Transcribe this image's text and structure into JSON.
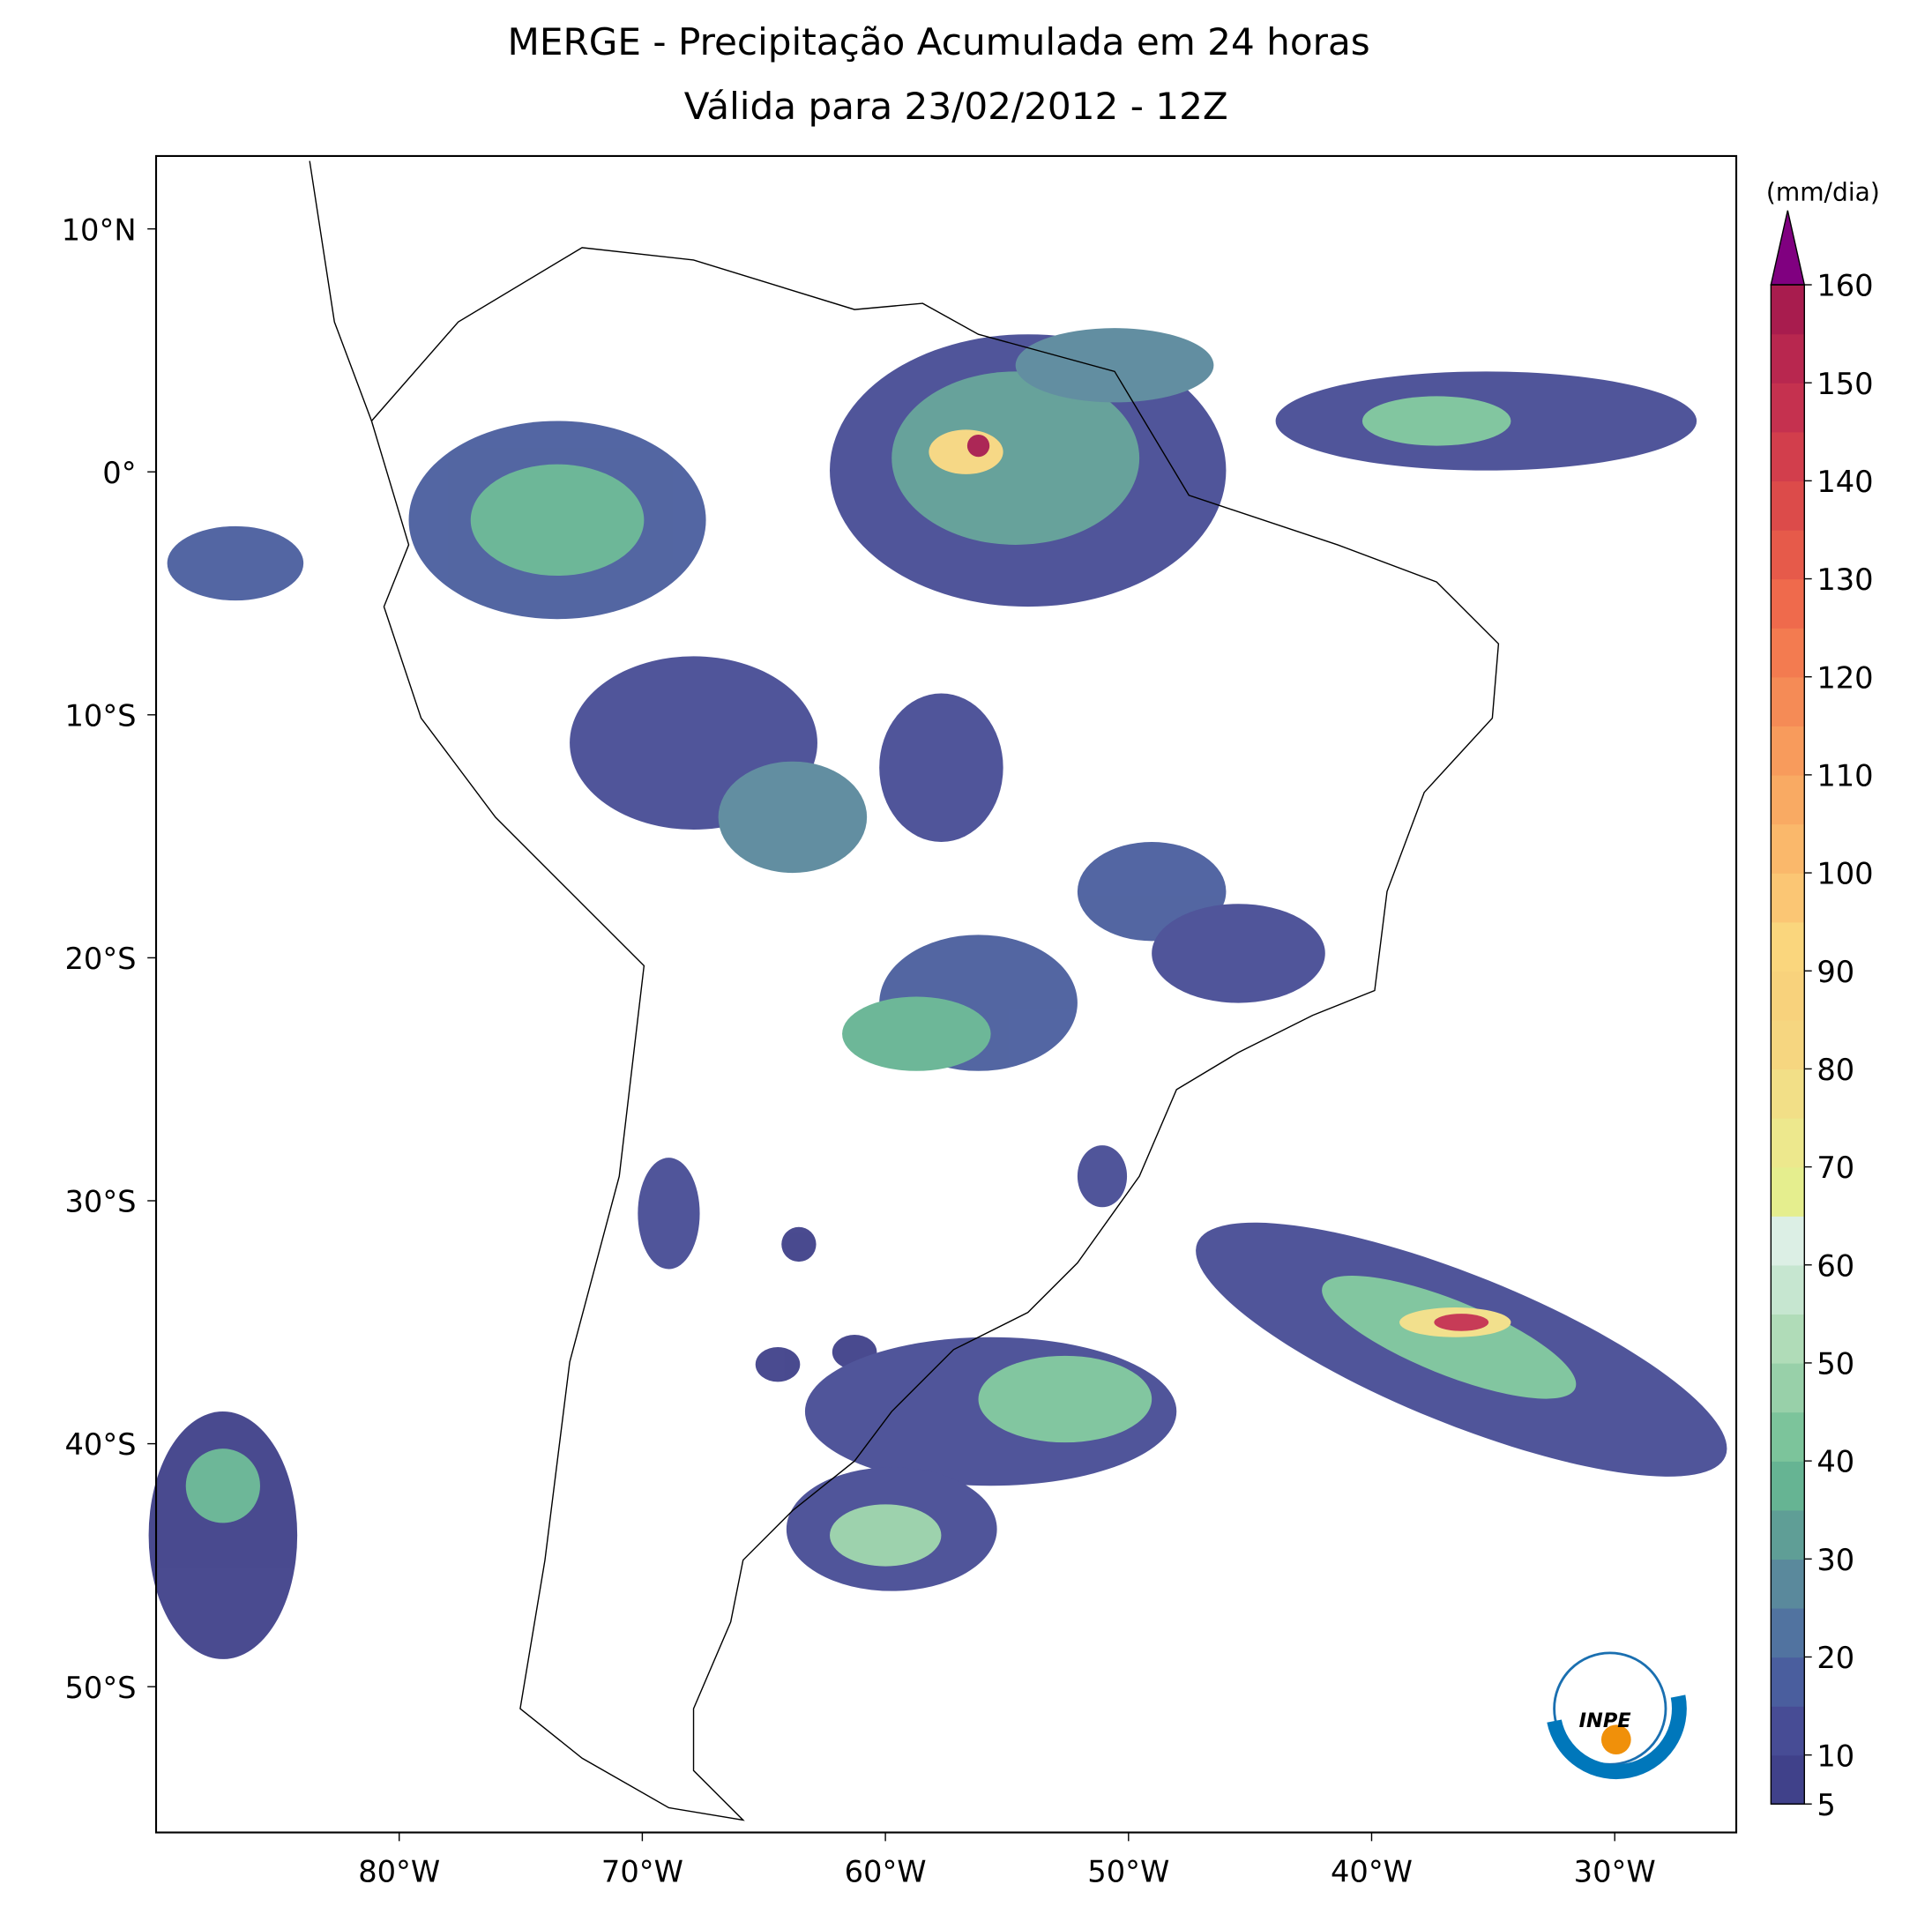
{
  "title": "MERGE - Precipitação Acumulada em 24 horas",
  "subtitle": "Válida para 23/02/2012 - 12Z",
  "map": {
    "xlim": [
      -90,
      -25
    ],
    "ylim": [
      -56,
      13
    ],
    "xticks": [
      {
        "value": -80,
        "label": "80°W"
      },
      {
        "value": -70,
        "label": "70°W"
      },
      {
        "value": -60,
        "label": "60°W"
      },
      {
        "value": -50,
        "label": "50°W"
      },
      {
        "value": -40,
        "label": "40°W"
      },
      {
        "value": -30,
        "label": "30°W"
      }
    ],
    "yticks": [
      {
        "value": 10,
        "label": "10°N"
      },
      {
        "value": 0,
        "label": "0°"
      },
      {
        "value": -10,
        "label": "10°S"
      },
      {
        "value": -20,
        "label": "20°S"
      },
      {
        "value": -30,
        "label": "30°S"
      },
      {
        "value": -40,
        "label": "40°S"
      },
      {
        "value": -50,
        "label": "50°S"
      }
    ]
  },
  "colorbar": {
    "label": "(mm/dia)",
    "lim": [
      5,
      160
    ],
    "ticks": [
      5,
      10,
      20,
      30,
      40,
      50,
      60,
      70,
      80,
      90,
      100,
      110,
      120,
      130,
      140,
      150,
      160
    ],
    "colors": [
      "#40418a",
      "#474c95",
      "#4a5e9e",
      "#5173a0",
      "#5a899c",
      "#5f9e96",
      "#66b493",
      "#7cc49b",
      "#98d0a9",
      "#b0dcb8",
      "#c6e6d0",
      "#dcefe5",
      "#e5ee8e",
      "#ede88d",
      "#f2df87",
      "#f6d680",
      "#f8d27c",
      "#fad67d",
      "#fbc674",
      "#fab86b",
      "#f9aa63",
      "#f89b5c",
      "#f58b56",
      "#f37b50",
      "#ef6a4c",
      "#e65a4a",
      "#dc4b4a",
      "#d23e4c",
      "#c5314f",
      "#b8274f",
      "#a81c4e"
    ],
    "extend_color": "#800080"
  },
  "logo": "INPE"
}
